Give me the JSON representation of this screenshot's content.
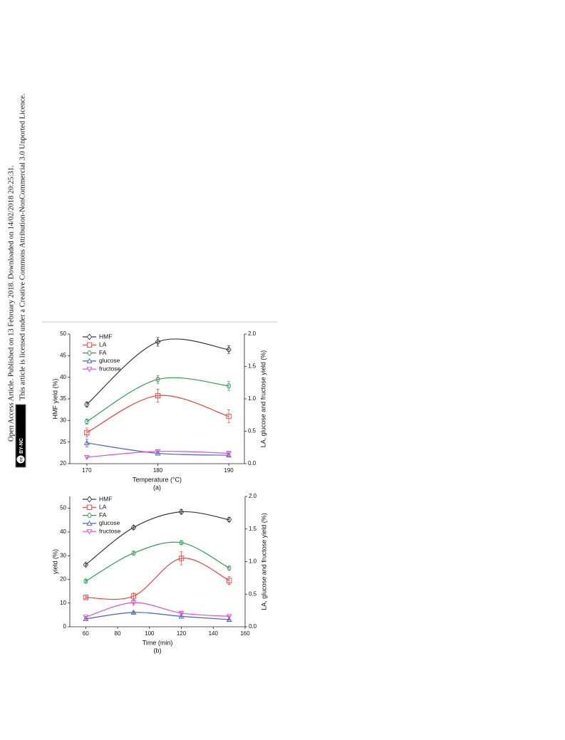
{
  "sidebar": {
    "line1": "Open Access Article. Published on 13 February 2018. Downloaded on 14/02/2018 20:25:31.",
    "line2": "This article is licensed under a Creative Commons Attribution-NonCommercial 3.0 Unported Licence.",
    "badge": "BY-NC"
  },
  "chart_data": [
    {
      "type": "line",
      "xlabel": "Temperature (°C)",
      "ylabel": "HMF yield (%)",
      "y2label": "LA, glucose and fructose yield (%)",
      "caption": "(a)",
      "x": [
        170,
        180,
        190
      ],
      "xlim": [
        167.6,
        192.2
      ],
      "xticks": [
        170,
        180,
        190
      ],
      "ylim": [
        20,
        50
      ],
      "yticks": [
        20,
        25,
        30,
        35,
        40,
        45,
        50
      ],
      "y2lim": [
        0,
        2
      ],
      "y2ticks": [
        {
          "value": 0,
          "label": "0.0"
        },
        0.5,
        {
          "value": 1,
          "label": "1.0"
        },
        1.5,
        {
          "value": 2,
          "label": "2.0"
        }
      ],
      "legend": "upper left",
      "series": [
        {
          "name": "HMF",
          "color": "#3a3a3a",
          "marker": "diamond",
          "values": [
            33.7,
            48.2,
            46.4
          ],
          "errors": [
            0.6,
            1.0,
            0.9
          ]
        },
        {
          "name": "LA",
          "color": "#e8413d",
          "marker": "square",
          "axis": "y2",
          "values": [
            0.48,
            1.05,
            0.73
          ],
          "errors": [
            0.07,
            0.1,
            0.1
          ]
        },
        {
          "name": "FA",
          "color": "#2e9e4f",
          "marker": "circle",
          "axis": "y2",
          "values": [
            0.65,
            1.3,
            1.2
          ],
          "errors": [
            0.04,
            0.06,
            0.07
          ]
        },
        {
          "name": "glucose",
          "color": "#4a5fc1",
          "marker": "triangle-up",
          "axis": "y2",
          "values": [
            0.32,
            0.16,
            0.13
          ],
          "errors": [
            0.06,
            0.03,
            0.02
          ]
        },
        {
          "name": "fructose",
          "color": "#d64fd6",
          "marker": "triangle-down",
          "axis": "y2",
          "values": [
            0.1,
            0.19,
            0.16
          ],
          "errors": [
            0.02,
            0.02,
            0.02
          ]
        }
      ]
    },
    {
      "type": "line",
      "xlabel": "Time (min)",
      "ylabel": "yield (%)",
      "y2label": "LA, glucose and fructose yield (%)",
      "caption": "(b)",
      "x": [
        60,
        90,
        120,
        150
      ],
      "xlim": [
        50,
        160
      ],
      "xticks": [
        60,
        80,
        100,
        120,
        140,
        160
      ],
      "ylim": [
        0,
        55
      ],
      "yticks": [
        0,
        10,
        20,
        30,
        40,
        50
      ],
      "y2lim": [
        0,
        2
      ],
      "y2ticks": [
        {
          "value": 0,
          "label": "0.0"
        },
        0.5,
        {
          "value": 1,
          "label": "1.0"
        },
        1.5,
        {
          "value": 2,
          "label": "2.0"
        }
      ],
      "legend": "upper left",
      "series": [
        {
          "name": "HMF",
          "color": "#3a3a3a",
          "marker": "diamond",
          "values": [
            26.2,
            41.9,
            48.5,
            45.2
          ],
          "errors": [
            0.5,
            0.8,
            1.0,
            0.9
          ]
        },
        {
          "name": "LA",
          "color": "#e8413d",
          "marker": "square",
          "axis": "y2",
          "values": [
            0.45,
            0.47,
            1.05,
            0.71
          ],
          "errors": [
            0.02,
            0.05,
            0.1,
            0.06
          ]
        },
        {
          "name": "FA",
          "color": "#2e9e4f",
          "marker": "circle",
          "axis": "y2",
          "values": [
            0.7,
            1.13,
            1.29,
            0.9
          ],
          "errors": [
            0.02,
            0.03,
            0.03,
            0.03
          ]
        },
        {
          "name": "glucose",
          "color": "#4a5fc1",
          "marker": "triangle-up",
          "axis": "y2",
          "values": [
            0.12,
            0.22,
            0.16,
            0.11
          ],
          "errors": [
            0.01,
            0.02,
            0.03,
            0.01
          ]
        },
        {
          "name": "fructose",
          "color": "#d64fd6",
          "marker": "triangle-down",
          "axis": "y2",
          "values": [
            0.15,
            0.37,
            0.21,
            0.16
          ],
          "errors": [
            0.01,
            0.04,
            0.02,
            0.01
          ]
        }
      ]
    }
  ]
}
